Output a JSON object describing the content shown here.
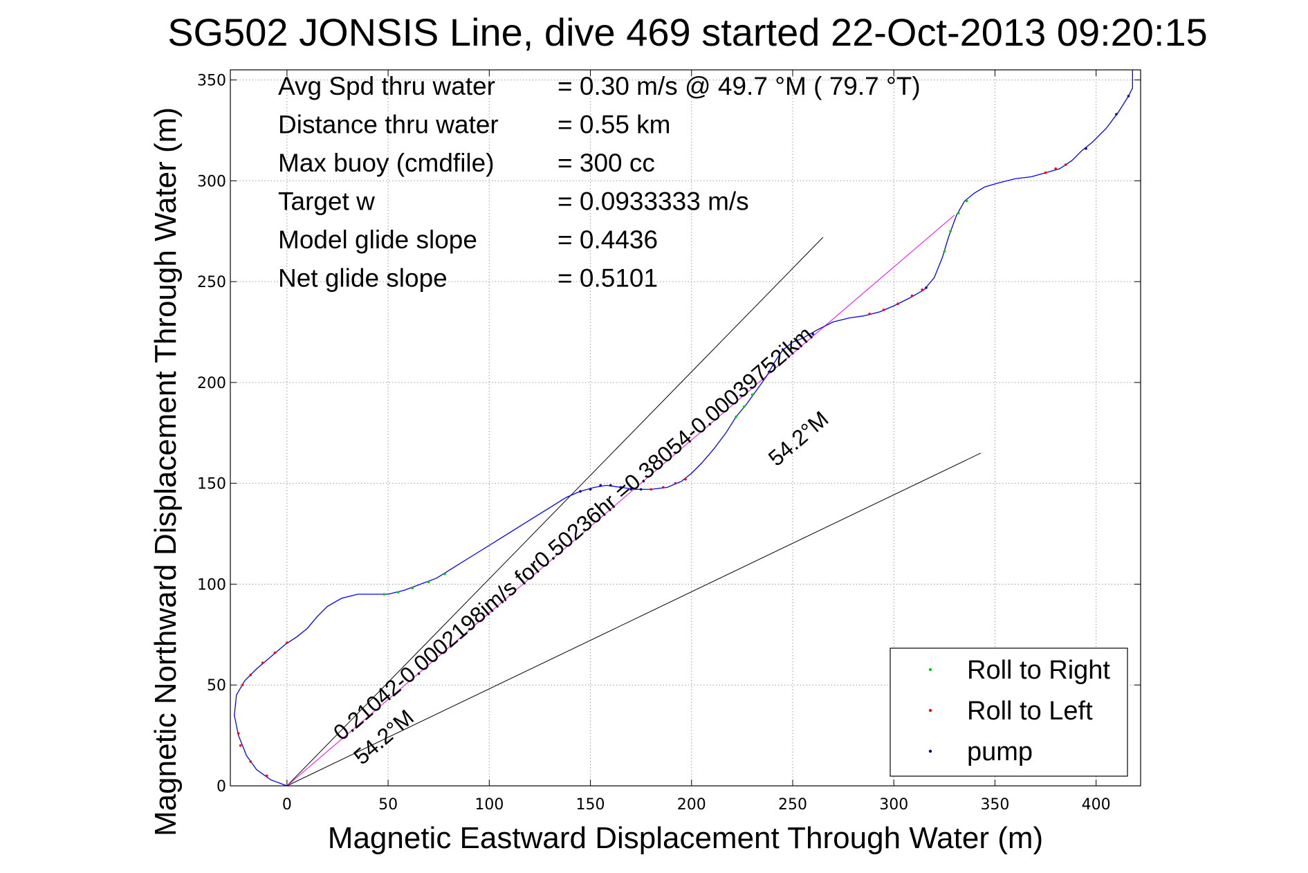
{
  "chart_data": {
    "type": "line",
    "title": "SG502 JONSIS Line, dive 469 started 22-Oct-2013 09:20:15",
    "xlabel": "Magnetic Eastward Displacement Through Water (m)",
    "ylabel": "Magnetic Northward Displacement Through Water (m)",
    "xlim": [
      -28,
      422
    ],
    "ylim": [
      0,
      355
    ],
    "xticks": [
      0,
      50,
      100,
      150,
      200,
      250,
      300,
      350,
      400
    ],
    "yticks": [
      0,
      50,
      100,
      150,
      200,
      250,
      300,
      350
    ],
    "grid": true,
    "legend_position": "bottom-right",
    "info_lines": [
      {
        "label": "Avg Spd thru water",
        "value": "=  0.30 m/s @  49.7 °M ( 79.7 °T)"
      },
      {
        "label": "Distance thru water",
        "value": "=  0.55 km"
      },
      {
        "label": "Max buoy (cmdfile)",
        "value": "= 300 cc"
      },
      {
        "label": "Target w",
        "value": "= 0.0933333 m/s"
      },
      {
        "label": "Model glide slope",
        "value": "= 0.4436"
      },
      {
        "label": "Net glide slope",
        "value": "= 0.5101"
      }
    ],
    "track": {
      "color": "#0000ff",
      "points": [
        [
          0,
          0
        ],
        [
          -8,
          3
        ],
        [
          -15,
          8
        ],
        [
          -20,
          15
        ],
        [
          -24,
          25
        ],
        [
          -26,
          35
        ],
        [
          -25,
          45
        ],
        [
          -21,
          52
        ],
        [
          -15,
          58
        ],
        [
          -8,
          64
        ],
        [
          -1,
          70
        ],
        [
          5,
          74
        ],
        [
          10,
          78
        ],
        [
          15,
          84
        ],
        [
          20,
          89
        ],
        [
          27,
          93
        ],
        [
          35,
          95
        ],
        [
          42,
          95
        ],
        [
          50,
          95
        ],
        [
          58,
          97
        ],
        [
          66,
          100
        ],
        [
          74,
          103
        ],
        [
          82,
          108
        ],
        [
          90,
          113
        ],
        [
          98,
          118
        ],
        [
          106,
          123
        ],
        [
          114,
          128
        ],
        [
          122,
          133
        ],
        [
          130,
          138
        ],
        [
          138,
          143
        ],
        [
          145,
          146
        ],
        [
          152,
          148
        ],
        [
          158,
          149
        ],
        [
          165,
          148
        ],
        [
          172,
          147
        ],
        [
          180,
          147
        ],
        [
          188,
          148
        ],
        [
          195,
          151
        ],
        [
          200,
          155
        ],
        [
          205,
          160
        ],
        [
          211,
          167
        ],
        [
          217,
          175
        ],
        [
          222,
          183
        ],
        [
          227,
          189
        ],
        [
          232,
          196
        ],
        [
          237,
          203
        ],
        [
          241,
          210
        ],
        [
          245,
          216
        ],
        [
          250,
          220
        ],
        [
          255,
          222
        ],
        [
          262,
          226
        ],
        [
          270,
          230
        ],
        [
          278,
          232
        ],
        [
          285,
          233
        ],
        [
          293,
          235
        ],
        [
          300,
          238
        ],
        [
          308,
          242
        ],
        [
          315,
          246
        ],
        [
          320,
          252
        ],
        [
          324,
          262
        ],
        [
          327,
          272
        ],
        [
          331,
          283
        ],
        [
          335,
          290
        ],
        [
          340,
          294
        ],
        [
          345,
          297
        ],
        [
          352,
          299
        ],
        [
          360,
          301
        ],
        [
          368,
          302
        ],
        [
          375,
          304
        ],
        [
          382,
          306
        ],
        [
          388,
          310
        ],
        [
          393,
          315
        ],
        [
          398,
          319
        ],
        [
          405,
          326
        ],
        [
          411,
          334
        ],
        [
          416,
          342
        ],
        [
          418,
          346
        ],
        [
          418,
          352
        ],
        [
          418,
          355
        ]
      ]
    },
    "markers": {
      "roll_right": {
        "color": "#00cc00",
        "points": [
          [
            48,
            95
          ],
          [
            55,
            96
          ],
          [
            62,
            98
          ],
          [
            70,
            101
          ],
          [
            78,
            105
          ],
          [
            222,
            183
          ],
          [
            226,
            188
          ],
          [
            230,
            194
          ],
          [
            325,
            265
          ],
          [
            328,
            275
          ],
          [
            332,
            284
          ],
          [
            336,
            290
          ]
        ]
      },
      "roll_left": {
        "color": "#ff0000",
        "points": [
          [
            -22,
            50
          ],
          [
            -18,
            55
          ],
          [
            -12,
            61
          ],
          [
            -6,
            66
          ],
          [
            0,
            71
          ],
          [
            -24,
            26
          ],
          [
            -23,
            20
          ],
          [
            -18,
            12
          ],
          [
            -10,
            5
          ],
          [
            288,
            234
          ],
          [
            295,
            236
          ],
          [
            302,
            239
          ],
          [
            309,
            243
          ],
          [
            314,
            246
          ],
          [
            375,
            304
          ],
          [
            380,
            306
          ],
          [
            385,
            308
          ],
          [
            180,
            147
          ],
          [
            186,
            148
          ],
          [
            192,
            150
          ],
          [
            197,
            152
          ]
        ]
      },
      "pump": {
        "color": "#000080",
        "points": [
          [
            145,
            146
          ],
          [
            150,
            147
          ],
          [
            155,
            149
          ],
          [
            160,
            149
          ],
          [
            165,
            148
          ],
          [
            170,
            147
          ],
          [
            175,
            147
          ],
          [
            260,
            224
          ],
          [
            316,
            247
          ],
          [
            395,
            316
          ],
          [
            410,
            333
          ],
          [
            416,
            342
          ]
        ]
      }
    },
    "reference_lines": [
      {
        "from": [
          0,
          0
        ],
        "to": [
          265,
          272
        ],
        "color": "#000000"
      },
      {
        "from": [
          0,
          0
        ],
        "to": [
          343,
          165
        ],
        "color": "#000000"
      },
      {
        "from": [
          0,
          0
        ],
        "to": [
          330,
          283
        ],
        "color": "#ff00ff"
      }
    ],
    "annotations": [
      {
        "text": "0.21042-0.0002198im/s for0.50236hr =0.38054-0.00039752ikm",
        "at": [
          27,
          22
        ],
        "angle_deg": 40.6,
        "font_size": 32
      },
      {
        "text": "54.2°M",
        "at": [
          37,
          10
        ],
        "angle_deg": 40.6,
        "font_size": 32
      },
      {
        "text": "54.2°M",
        "at": [
          242,
          158
        ],
        "angle_deg": 40.6,
        "font_size": 32
      }
    ],
    "legend": [
      {
        "label": "Roll to Right",
        "color": "#00cc00"
      },
      {
        "label": "Roll to Left",
        "color": "#ff0000"
      },
      {
        "label": "pump",
        "color": "#000080"
      }
    ]
  }
}
